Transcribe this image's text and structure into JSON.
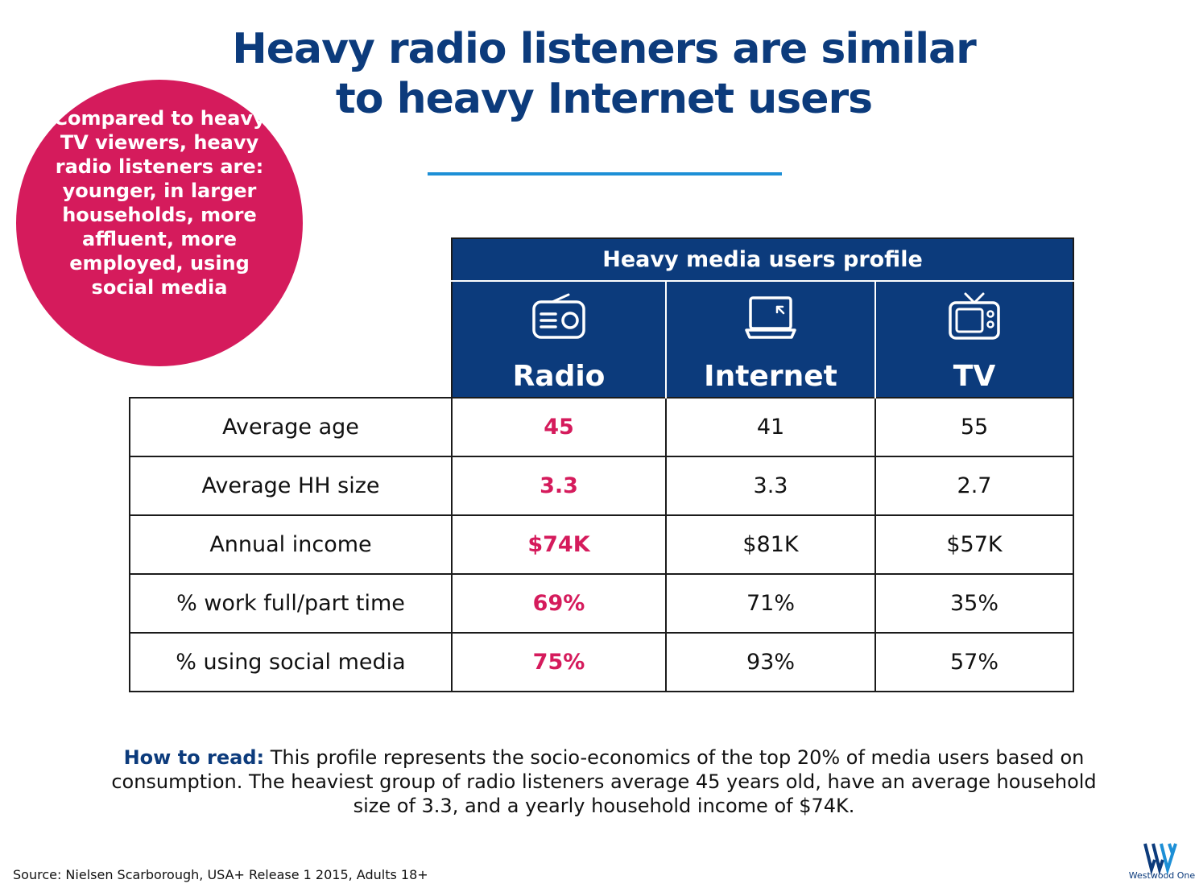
{
  "title_line1": "Heavy radio listeners are similar",
  "title_line2": "to heavy Internet users",
  "callout": "Compared to heavy TV viewers, heavy radio listeners are: younger, in larger households, more affluent, more employed, using social media",
  "chart_data": {
    "type": "table",
    "title": "Heavy media users profile",
    "columns": [
      "Radio",
      "Internet",
      "TV"
    ],
    "column_icons": [
      "radio-icon",
      "laptop-icon",
      "tv-icon"
    ],
    "rows": [
      {
        "label": "Average age",
        "values": [
          "45",
          "41",
          "55"
        ]
      },
      {
        "label": "Average HH size",
        "values": [
          "3.3",
          "3.3",
          "2.7"
        ]
      },
      {
        "label": "Annual income",
        "values": [
          "$74K",
          "$81K",
          "$57K"
        ]
      },
      {
        "label": "% work full/part time",
        "values": [
          "69%",
          "71%",
          "35%"
        ]
      },
      {
        "label": "% using social media",
        "values": [
          "75%",
          "93%",
          "57%"
        ]
      }
    ],
    "highlight_column": "Radio"
  },
  "how_to_read": {
    "lead": "How to read:",
    "text": " This profile represents the socio-economics of the top 20% of media users based on consumption. The heaviest group of radio listeners average 45 years old,  have an average household size of 3.3, and a yearly household income of $74K."
  },
  "source": "Source: Nielsen Scarborough, USA+ Release 1 2015, Adults 18+",
  "logo_text": "Westwood One",
  "colors": {
    "title": "#0c3b7c",
    "header_fill": "#0c3b7c",
    "highlight": "#d51b5c",
    "rule": "#1d8fd6"
  }
}
